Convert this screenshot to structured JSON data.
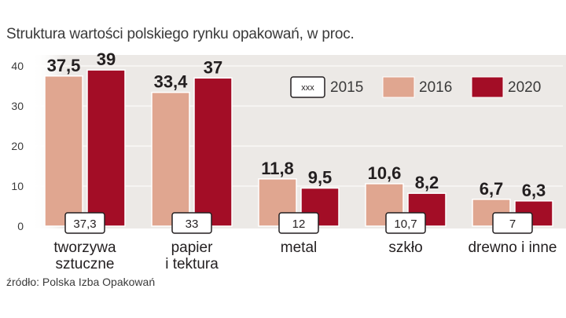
{
  "chart_data": {
    "type": "bar",
    "title": "Struktura wartości polskiego rynku opakowań, w proc.",
    "source": "źródło: Polska Izba Opakowań",
    "categories": [
      [
        "tworzywa",
        "sztuczne"
      ],
      [
        "papier",
        "i tektura"
      ],
      [
        "metal"
      ],
      [
        "szkło"
      ],
      [
        "drewno i inne"
      ]
    ],
    "series": [
      {
        "name": "2015",
        "values": [
          37.3,
          33,
          12,
          10.7,
          7
        ],
        "labels": [
          "37,3",
          "33",
          "12",
          "10,7",
          "7"
        ],
        "style": "box"
      },
      {
        "name": "2016",
        "values": [
          37.5,
          33.4,
          11.8,
          10.6,
          6.7
        ],
        "labels": [
          "37,5",
          "33,4",
          "11,8",
          "10,6",
          "6,7"
        ],
        "color": "#e0a690"
      },
      {
        "name": "2020",
        "values": [
          39,
          37,
          9.5,
          8.2,
          6.3
        ],
        "labels": [
          "39",
          "37",
          "9,5",
          "8,2",
          "6,3"
        ],
        "color": "#a30d26"
      }
    ],
    "legend": {
      "sample_text": "xxx",
      "placement": "top-right"
    },
    "yticks": [
      0,
      10,
      20,
      30,
      40
    ],
    "ylim": [
      0,
      40
    ],
    "background_color": "#ece9e6"
  }
}
